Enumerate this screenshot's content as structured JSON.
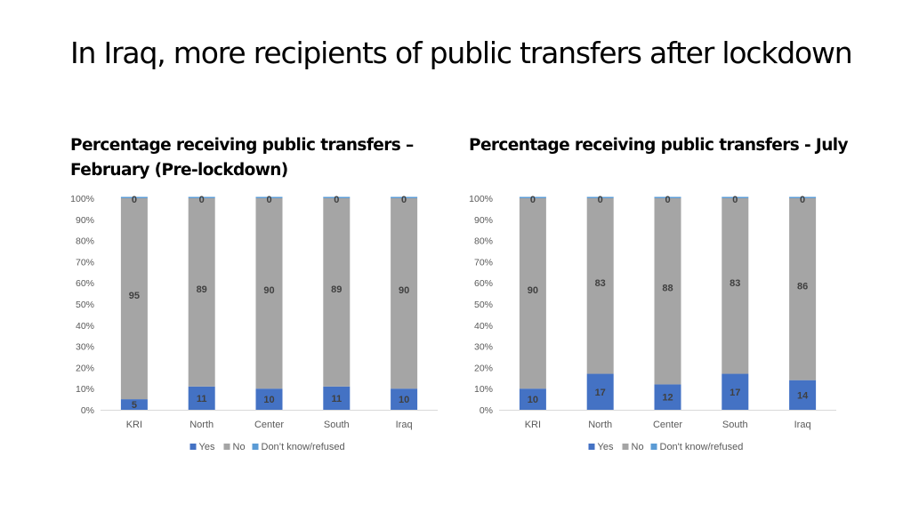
{
  "title": "In Iraq, more recipients of public transfers after lockdown",
  "colors": {
    "Yes": "#4472C4",
    "No": "#A5A5A5",
    "Don't know/refused": "#5B9BD5"
  },
  "chart_data": [
    {
      "type": "bar",
      "stacked": true,
      "title": "Percentage receiving public transfers – February (Pre-lockdown)",
      "categories": [
        "KRI",
        "North",
        "Center",
        "South",
        "Iraq"
      ],
      "ylim": [
        0,
        100
      ],
      "ytick_labels": [
        "0%",
        "10%",
        "20%",
        "30%",
        "40%",
        "50%",
        "60%",
        "70%",
        "80%",
        "90%",
        "100%"
      ],
      "series": [
        {
          "name": "Yes",
          "values": [
            5,
            11,
            10,
            11,
            10
          ]
        },
        {
          "name": "No",
          "values": [
            95,
            89,
            90,
            89,
            90
          ]
        },
        {
          "name": "Don’t know/refused",
          "values": [
            0,
            0,
            0,
            0,
            0
          ]
        }
      ],
      "legend": "bottom",
      "grid": false
    },
    {
      "type": "bar",
      "stacked": true,
      "title": "Percentage receiving public transfers - July",
      "categories": [
        "KRI",
        "North",
        "Center",
        "South",
        "Iraq"
      ],
      "ylim": [
        0,
        100
      ],
      "ytick_labels": [
        "0%",
        "10%",
        "20%",
        "30%",
        "40%",
        "50%",
        "60%",
        "70%",
        "80%",
        "90%",
        "100%"
      ],
      "series": [
        {
          "name": "Yes",
          "values": [
            10,
            17,
            12,
            17,
            14
          ]
        },
        {
          "name": "No",
          "values": [
            90,
            83,
            88,
            83,
            86
          ]
        },
        {
          "name": "Don't know/refused",
          "values": [
            0,
            0,
            0,
            0,
            0
          ]
        }
      ],
      "legend": "bottom",
      "grid": false
    }
  ]
}
